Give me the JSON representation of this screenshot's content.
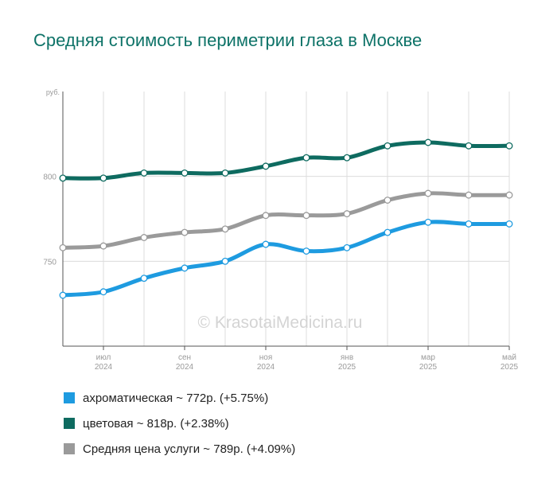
{
  "chart_data": {
    "type": "line",
    "title": "Средняя стоимость периметрии глаза в Москве",
    "ylabel": "руб.",
    "ylim": [
      700,
      850
    ],
    "yticks": [
      750,
      800
    ],
    "x": [
      "2024-06",
      "2024-07",
      "2024-08",
      "2024-09",
      "2024-10",
      "2024-11",
      "2024-12",
      "2025-01",
      "2025-02",
      "2025-03",
      "2025-04",
      "2025-05"
    ],
    "xticks": [
      {
        "month": "июл",
        "year": "2024",
        "index": 1
      },
      {
        "month": "сен",
        "year": "2024",
        "index": 3
      },
      {
        "month": "ноя",
        "year": "2024",
        "index": 5
      },
      {
        "month": "янв",
        "year": "2025",
        "index": 7
      },
      {
        "month": "мар",
        "year": "2025",
        "index": 9
      },
      {
        "month": "май",
        "year": "2025",
        "index": 11
      }
    ],
    "series": [
      {
        "name": "ахроматическая",
        "color": "#1e9be0",
        "values": [
          730,
          732,
          740,
          746,
          750,
          760,
          756,
          758,
          767,
          773,
          772,
          772
        ]
      },
      {
        "name": "цветовая",
        "color": "#0e6b60",
        "values": [
          799,
          799,
          802,
          802,
          802,
          806,
          811,
          811,
          818,
          820,
          818,
          818
        ]
      },
      {
        "name": "Средняя цена услуги",
        "color": "#9a9a9a",
        "values": [
          758,
          759,
          764,
          767,
          769,
          777,
          777,
          778,
          786,
          790,
          789,
          789
        ]
      }
    ],
    "grid": true,
    "legend_position": "bottom",
    "watermark": "© KrasotaiMedicina.ru"
  },
  "legend": [
    {
      "label": "ахроматическая ~ 772р. (+5.75%)",
      "color": "#1e9be0"
    },
    {
      "label": "цветовая ~ 818р. (+2.38%)",
      "color": "#0e6b60"
    },
    {
      "label": "Средняя цена услуги ~ 789р. (+4.09%)",
      "color": "#9a9a9a"
    }
  ]
}
